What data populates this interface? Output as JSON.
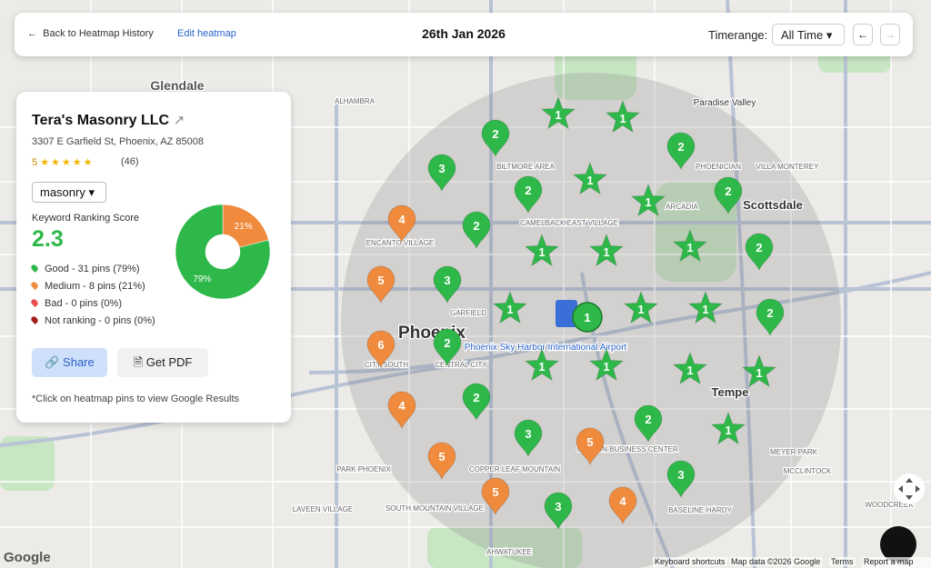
{
  "header": {
    "back": "Back to Heatmap History",
    "edit": "Edit heatmap",
    "date": "26th Jan 2026",
    "timerange_label": "Timerange:",
    "timerange_value": "All Time"
  },
  "business": {
    "name": "Tera's Masonry LLC",
    "address": "3307 E Garfield St, Phoenix, AZ 85008",
    "rating": "5",
    "reviews": "(46)",
    "keyword": "masonry",
    "score_label": "Keyword Ranking Score",
    "score": "2.3",
    "legend": [
      {
        "text": "Good - 31 pins (79%)",
        "color": "#2fb84a"
      },
      {
        "text": "Medium - 8 pins (21%)",
        "color": "#f08a3c"
      },
      {
        "text": "Bad - 0 pins (0%)",
        "color": "#e84c4c"
      },
      {
        "text": "Not ranking - 0 pins (0%)",
        "color": "#a31e1e"
      }
    ],
    "share": "Share",
    "pdf": "Get PDF",
    "note": "*Click on heatmap pins to view Google Results"
  },
  "donut": {
    "values": [
      21,
      79
    ],
    "value_labels": [
      "21%",
      "79%"
    ],
    "colors": [
      "#f08a3c",
      "#2fb84a"
    ]
  },
  "colors": {
    "good": "#2fb84a",
    "medium": "#f08a3c"
  },
  "center_pin": {
    "rank": "1"
  },
  "pins": [
    {
      "rank": "2",
      "status": "good"
    },
    {
      "rank": "2",
      "status": "good"
    },
    {
      "rank": "3",
      "status": "good"
    },
    {
      "rank": "2",
      "status": "good"
    },
    {
      "rank": "2",
      "status": "good"
    },
    {
      "rank": "2",
      "status": "good"
    },
    {
      "rank": "2",
      "status": "good"
    },
    {
      "rank": "3",
      "status": "good"
    },
    {
      "rank": "2",
      "status": "good"
    },
    {
      "rank": "2",
      "status": "good"
    },
    {
      "rank": "2",
      "status": "good"
    },
    {
      "rank": "2",
      "status": "good"
    },
    {
      "rank": "3",
      "status": "good"
    },
    {
      "rank": "3",
      "status": "good"
    },
    {
      "rank": "3",
      "status": "good"
    },
    {
      "rank": "1",
      "status": "good"
    },
    {
      "rank": "1",
      "status": "good"
    },
    {
      "rank": "1",
      "status": "good"
    },
    {
      "rank": "1",
      "status": "good"
    },
    {
      "rank": "1",
      "status": "good"
    },
    {
      "rank": "1",
      "status": "good"
    },
    {
      "rank": "1",
      "status": "good"
    },
    {
      "rank": "1",
      "status": "good"
    },
    {
      "rank": "1",
      "status": "good"
    },
    {
      "rank": "1",
      "status": "good"
    },
    {
      "rank": "1",
      "status": "good"
    },
    {
      "rank": "1",
      "status": "good"
    },
    {
      "rank": "1",
      "status": "good"
    },
    {
      "rank": "1",
      "status": "good"
    },
    {
      "rank": "1",
      "status": "good"
    },
    {
      "rank": "4",
      "status": "medium"
    },
    {
      "rank": "5",
      "status": "medium"
    },
    {
      "rank": "6",
      "status": "medium"
    },
    {
      "rank": "4",
      "status": "medium"
    },
    {
      "rank": "5",
      "status": "medium"
    },
    {
      "rank": "5",
      "status": "medium"
    },
    {
      "rank": "5",
      "status": "medium"
    },
    {
      "rank": "4",
      "status": "medium"
    }
  ],
  "map": {
    "labels": [
      "Glendale",
      "Paradise Valley",
      "Scottsdale",
      "Phoenix",
      "Tempe",
      "ALHAMBRA",
      "BILTMORE AREA",
      "ARCADIA",
      "CAMELBACK EAST VILLAGE",
      "ENCANTO VILLAGE",
      "CENTRAL CITY",
      "GARFIELD",
      "PHOENICIAN",
      "VILLA MONTEREY",
      "SOUTH MOUNTAIN VILLAGE",
      "COPPER LEAF MOUNTAIN",
      "COTTON BUSINESS CENTER",
      "BASELINE-HARDY",
      "LAVEEN VILLAGE",
      "PARK PHOENIX",
      "CITY SOUTH",
      "AHWATUKEE",
      "MEYER PARK",
      "MCCLINTOCK",
      "WOODCREEK",
      "Phoenix Sky Harbor International Airport"
    ],
    "footer": [
      "Keyboard shortcuts",
      "Map data ©2026 Google",
      "Terms",
      "Report a map error"
    ],
    "brand": "Google"
  }
}
